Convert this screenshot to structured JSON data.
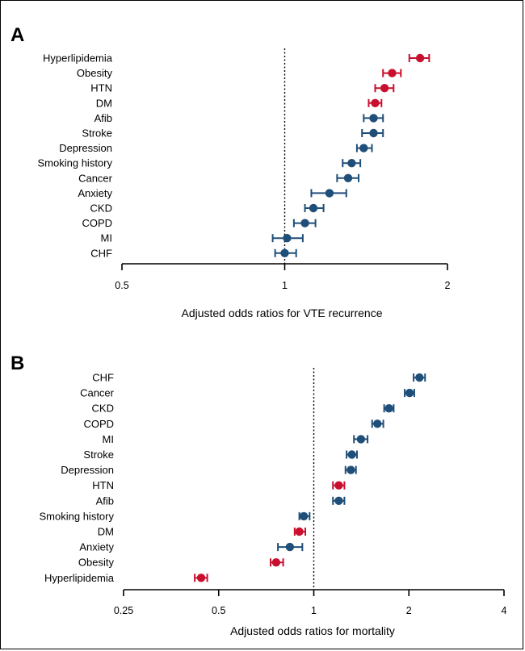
{
  "colors": {
    "red": "#C8102E",
    "blue": "#1F4E79",
    "axis": "#000000"
  },
  "chart_data": [
    {
      "panel_label": "A",
      "type": "scatter",
      "subtype": "forest-plot",
      "xscale": "log",
      "xlim": [
        0.5,
        2.0
      ],
      "xticks": [
        0.5,
        1,
        2
      ],
      "xtick_labels": [
        "0.5",
        "1",
        "2"
      ],
      "reference_line": 1,
      "xlabel": "Adjusted odds ratios for VTE recurrence",
      "ylabel": "",
      "categories": [
        "Hyperlipidemia",
        "Obesity",
        "HTN",
        "DM",
        "Afib",
        "Stroke",
        "Depression",
        "Smoking history",
        "Cancer",
        "Anxiety",
        "CKD",
        "COPD",
        "MI",
        "CHF"
      ],
      "or": [
        1.78,
        1.58,
        1.53,
        1.47,
        1.46,
        1.46,
        1.4,
        1.33,
        1.31,
        1.21,
        1.13,
        1.09,
        1.01,
        1.0
      ],
      "lower": [
        1.7,
        1.52,
        1.47,
        1.43,
        1.4,
        1.39,
        1.36,
        1.28,
        1.25,
        1.12,
        1.09,
        1.04,
        0.95,
        0.96
      ],
      "upper": [
        1.85,
        1.64,
        1.59,
        1.51,
        1.52,
        1.52,
        1.45,
        1.38,
        1.37,
        1.3,
        1.18,
        1.14,
        1.08,
        1.05
      ],
      "point_colors": [
        "red",
        "red",
        "red",
        "red",
        "blue",
        "blue",
        "blue",
        "blue",
        "blue",
        "blue",
        "blue",
        "blue",
        "blue",
        "blue"
      ]
    },
    {
      "panel_label": "B",
      "type": "scatter",
      "subtype": "forest-plot",
      "xscale": "log",
      "xlim": [
        0.25,
        4.0
      ],
      "xticks": [
        0.25,
        0.5,
        1,
        2,
        4
      ],
      "xtick_labels": [
        "0.25",
        "0.5",
        "1",
        "2",
        "4"
      ],
      "reference_line": 1,
      "xlabel": "Adjusted odds ratios for mortality",
      "ylabel": "",
      "categories": [
        "CHF",
        "Cancer",
        "CKD",
        "COPD",
        "MI",
        "Stroke",
        "Depression",
        "HTN",
        "Afib",
        "Smoking history",
        "DM",
        "Anxiety",
        "Obesity",
        "Hyperlipidemia"
      ],
      "or": [
        2.16,
        2.01,
        1.73,
        1.59,
        1.41,
        1.32,
        1.31,
        1.2,
        1.2,
        0.93,
        0.9,
        0.84,
        0.76,
        0.44
      ],
      "lower": [
        2.07,
        1.94,
        1.67,
        1.53,
        1.34,
        1.27,
        1.26,
        1.15,
        1.15,
        0.9,
        0.87,
        0.77,
        0.73,
        0.42
      ],
      "upper": [
        2.25,
        2.08,
        1.79,
        1.66,
        1.48,
        1.37,
        1.36,
        1.25,
        1.25,
        0.97,
        0.94,
        0.92,
        0.8,
        0.46
      ],
      "point_colors": [
        "blue",
        "blue",
        "blue",
        "blue",
        "blue",
        "blue",
        "blue",
        "red",
        "blue",
        "blue",
        "red",
        "blue",
        "red",
        "red"
      ]
    }
  ]
}
